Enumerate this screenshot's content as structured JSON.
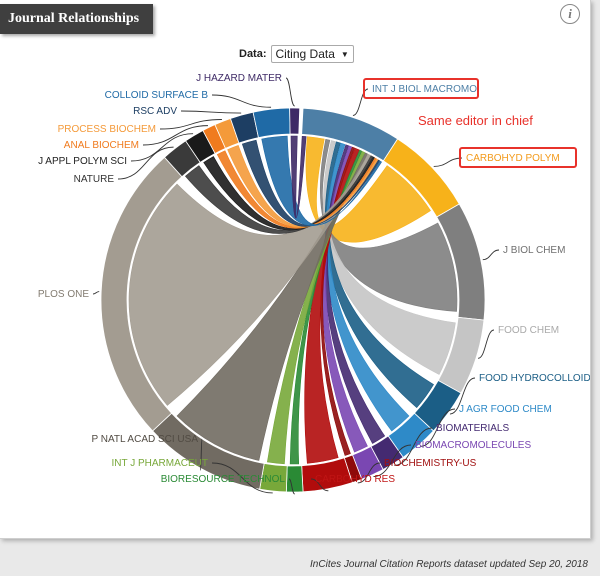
{
  "panel": {
    "title": "Journal Relationships",
    "info_icon_glyph": "i",
    "data_control": {
      "label": "Data:",
      "selected": "Citing Data"
    },
    "footer": "InCites Journal Citation Reports dataset updated Sep 20, 2018"
  },
  "annotation": {
    "text": "Same editor in chief",
    "color": "#e8322b",
    "boxed_labels": [
      "INT J BIOL MACROMOI",
      "CARBOHYD POLYM"
    ]
  },
  "chart_data": {
    "type": "chord",
    "title": "",
    "start_angle_deg": 0,
    "direction": "clockwise",
    "focus_journal": "INT J BIOL MACROMOI",
    "arcs": [
      {
        "label": "INT J BIOL MACROMOI",
        "start_deg": 3,
        "end_deg": 33,
        "color": "#4d7fa6"
      },
      {
        "label": "CARBOHYD POLYM",
        "start_deg": 33,
        "end_deg": 60,
        "color": "#f7b21a"
      },
      {
        "label": "J BIOL CHEM",
        "start_deg": 60,
        "end_deg": 96,
        "color": "#7f7f7f"
      },
      {
        "label": "FOOD CHEM",
        "start_deg": 96,
        "end_deg": 119,
        "color": "#c5c5c5"
      },
      {
        "label": "FOOD HYDROCOLLOID",
        "start_deg": 119,
        "end_deg": 133,
        "color": "#1b5e86"
      },
      {
        "label": "J AGR FOOD CHEM",
        "start_deg": 133,
        "end_deg": 145,
        "color": "#2e8ac8"
      },
      {
        "label": "BIOMATERIALS",
        "start_deg": 145,
        "end_deg": 152,
        "color": "#442a71"
      },
      {
        "label": "BIOMACROMOLECULES",
        "start_deg": 152,
        "end_deg": 159,
        "color": "#7a47b2"
      },
      {
        "label": "BIOCHEMISTRY-US",
        "start_deg": 159,
        "end_deg": 162,
        "color": "#8e0a0a"
      },
      {
        "label": "CARBOHYD RES",
        "start_deg": 162,
        "end_deg": 177,
        "color": "#b10c0c"
      },
      {
        "label": "BIORESOURCE TECHNOL",
        "start_deg": 177,
        "end_deg": 182,
        "color": "#2a8a35"
      },
      {
        "label": "INT J PHARMACEUT",
        "start_deg": 182,
        "end_deg": 190,
        "color": "#78a83a"
      },
      {
        "label": "P NATL ACAD SCI USA",
        "start_deg": 190,
        "end_deg": 227,
        "color": "#716b62"
      },
      {
        "label": "PLOS ONE",
        "start_deg": 227,
        "end_deg": 318,
        "color": "#a39c91"
      },
      {
        "label": "NATURE",
        "start_deg": 318,
        "end_deg": 326,
        "color": "#3a3a3a"
      },
      {
        "label": "J APPL POLYM SCI",
        "start_deg": 326,
        "end_deg": 332,
        "color": "#1a1a1a"
      },
      {
        "label": "ANAL BIOCHEM",
        "start_deg": 332,
        "end_deg": 336,
        "color": "#f07b1e"
      },
      {
        "label": "PROCESS BIOCHEM",
        "start_deg": 336,
        "end_deg": 341,
        "color": "#f49a3a"
      },
      {
        "label": "RSC ADV",
        "start_deg": 341,
        "end_deg": 348,
        "color": "#1d3e63"
      },
      {
        "label": "COLLOID SURFACE B",
        "start_deg": 348,
        "end_deg": 359,
        "color": "#1f6aa6"
      },
      {
        "label": "J HAZARD MATER",
        "start_deg": 359,
        "end_deg": 362,
        "color": "#3e2a66"
      }
    ],
    "labels": [
      {
        "label": "INT J BIOL MACROMOI",
        "color": "#4d7fa6"
      },
      {
        "label": "CARBOHYD POLYM",
        "color": "#f39a1a"
      },
      {
        "label": "J BIOL CHEM",
        "color": "#6f6f6f"
      },
      {
        "label": "FOOD CHEM",
        "color": "#aaaaaa"
      },
      {
        "label": "FOOD HYDROCOLLOID",
        "color": "#1b5e86"
      },
      {
        "label": "J AGR FOOD CHEM",
        "color": "#2e8ac8"
      },
      {
        "label": "BIOMATERIALS",
        "color": "#442a71"
      },
      {
        "label": "BIOMACROMOLECULES",
        "color": "#7a47b2"
      },
      {
        "label": "BIOCHEMISTRY-US",
        "color": "#a11010"
      },
      {
        "label": "CARBOHYD RES",
        "color": "#c01515"
      },
      {
        "label": "BIORESOURCE TECHNOL",
        "color": "#2a8a35"
      },
      {
        "label": "INT J PHARMACEUT",
        "color": "#78a83a"
      },
      {
        "label": "P NATL ACAD SCI USA",
        "color": "#514b43"
      },
      {
        "label": "PLOS ONE",
        "color": "#827b70"
      },
      {
        "label": "NATURE",
        "color": "#333333"
      },
      {
        "label": "J APPL POLYM SCI",
        "color": "#222222"
      },
      {
        "label": "ANAL BIOCHEM",
        "color": "#f07b1e"
      },
      {
        "label": "PROCESS BIOCHEM",
        "color": "#f49a3a"
      },
      {
        "label": "RSC ADV",
        "color": "#1d3e63"
      },
      {
        "label": "COLLOID SURFACE B",
        "color": "#1f6aa6"
      },
      {
        "label": "J HAZARD MATER",
        "color": "#3e2a66"
      }
    ],
    "flows": [
      {
        "source": "INT J BIOL MACROMOI",
        "target": "CARBOHYD POLYM",
        "source_span_deg": [
          5,
          11
        ],
        "target_span_deg": [
          35,
          57
        ]
      },
      {
        "source": "INT J BIOL MACROMOI",
        "target": "J BIOL CHEM",
        "source_span_deg": [
          11.5,
          13
        ],
        "target_span_deg": [
          62,
          94
        ]
      },
      {
        "source": "INT J BIOL MACROMOI",
        "target": "FOOD CHEM",
        "source_span_deg": [
          13.5,
          15
        ],
        "target_span_deg": [
          98,
          117
        ]
      },
      {
        "source": "INT J BIOL MACROMOI",
        "target": "FOOD HYDROCOLLOID",
        "source_span_deg": [
          15.3,
          16.8
        ],
        "target_span_deg": [
          121,
          131
        ]
      },
      {
        "source": "INT J BIOL MACROMOI",
        "target": "J AGR FOOD CHEM",
        "source_span_deg": [
          17,
          18.5
        ],
        "target_span_deg": [
          135,
          143
        ]
      },
      {
        "source": "INT J BIOL MACROMOI",
        "target": "BIOMATERIALS",
        "source_span_deg": [
          18.8,
          19.8
        ],
        "target_span_deg": [
          146,
          151
        ]
      },
      {
        "source": "INT J BIOL MACROMOI",
        "target": "BIOMACROMOLECULES",
        "source_span_deg": [
          20,
          21
        ],
        "target_span_deg": [
          153,
          158
        ]
      },
      {
        "source": "INT J BIOL MACROMOI",
        "target": "BIOCHEMISTRY-US",
        "source_span_deg": [
          21.2,
          22
        ],
        "target_span_deg": [
          159.5,
          161.5
        ]
      },
      {
        "source": "INT J BIOL MACROMOI",
        "target": "CARBOHYD RES",
        "source_span_deg": [
          22.2,
          23.8
        ],
        "target_span_deg": [
          164,
          175
        ]
      },
      {
        "source": "INT J BIOL MACROMOI",
        "target": "BIORESOURCE TECHNOL",
        "source_span_deg": [
          24,
          24.8
        ],
        "target_span_deg": [
          178,
          181
        ]
      },
      {
        "source": "INT J BIOL MACROMOI",
        "target": "INT J PHARMACEUT",
        "source_span_deg": [
          25,
          26
        ],
        "target_span_deg": [
          183,
          189
        ]
      },
      {
        "source": "INT J BIOL MACROMOI",
        "target": "P NATL ACAD SCI USA",
        "source_span_deg": [
          26.2,
          27
        ],
        "target_span_deg": [
          192,
          225
        ]
      },
      {
        "source": "INT J BIOL MACROMOI",
        "target": "PLOS ONE",
        "source_span_deg": [
          27.2,
          28.2
        ],
        "target_span_deg": [
          230,
          315
        ]
      },
      {
        "source": "INT J BIOL MACROMOI",
        "target": "NATURE",
        "source_span_deg": [
          28.4,
          29
        ],
        "target_span_deg": [
          319,
          325
        ]
      },
      {
        "source": "INT J BIOL MACROMOI",
        "target": "J APPL POLYM SCI",
        "source_span_deg": [
          29.2,
          29.8
        ],
        "target_span_deg": [
          327,
          331
        ]
      },
      {
        "source": "INT J BIOL MACROMOI",
        "target": "ANAL BIOCHEM",
        "source_span_deg": [
          30,
          30.5
        ],
        "target_span_deg": [
          332.5,
          335.5
        ]
      },
      {
        "source": "INT J BIOL MACROMOI",
        "target": "PROCESS BIOCHEM",
        "source_span_deg": [
          30.7,
          31.2
        ],
        "target_span_deg": [
          336.5,
          340.5
        ]
      },
      {
        "source": "INT J BIOL MACROMOI",
        "target": "RSC ADV",
        "source_span_deg": [
          31.4,
          31.9
        ],
        "target_span_deg": [
          342,
          347
        ]
      },
      {
        "source": "INT J BIOL MACROMOI",
        "target": "COLLOID SURFACE B",
        "source_span_deg": [
          32.1,
          32.7
        ],
        "target_span_deg": [
          349,
          358
        ]
      },
      {
        "source": "INT J BIOL MACROMOI",
        "target": "J HAZARD MATER",
        "source_span_deg": [
          3.2,
          4.6
        ],
        "target_span_deg": [
          359.3,
          361.5
        ]
      }
    ]
  }
}
